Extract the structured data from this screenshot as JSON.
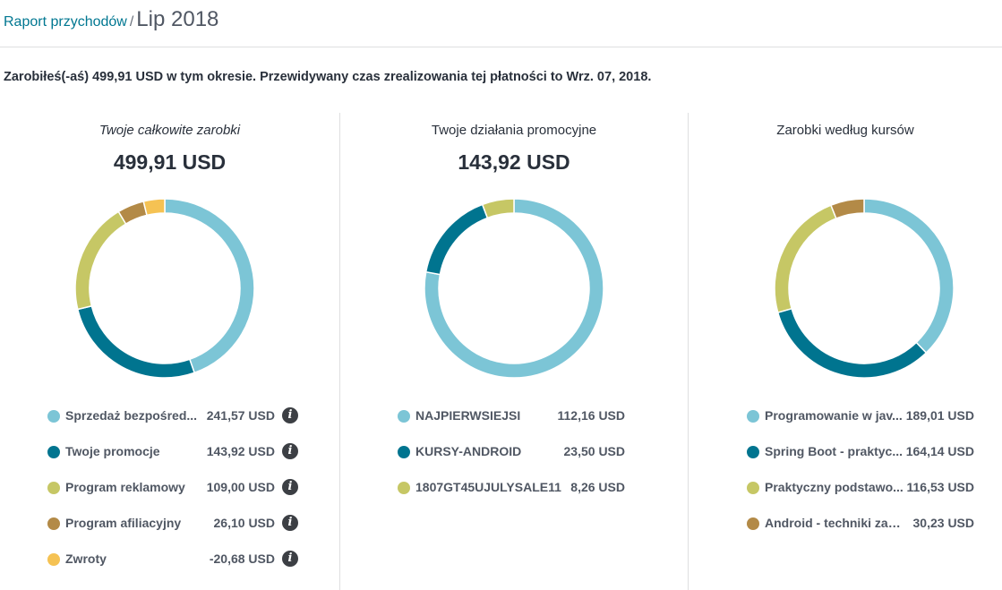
{
  "breadcrumb": {
    "parent": "Raport przychodów",
    "separator": "/",
    "current": "Lip 2018"
  },
  "summary": "Zarobiłeś(-aś) 499,91 USD w tym okresie. Przewidywany czas zrealizowania tej płatności to Wrz. 07, 2018.",
  "colors": {
    "light_blue": "#7cc5d6",
    "teal": "#00748f",
    "olive": "#c6c765",
    "brown": "#b38a47",
    "yellow": "#f5c253"
  },
  "chart_data": [
    {
      "type": "pie",
      "title": "Twoje całkowite zarobki",
      "total": "499,91 USD",
      "series": [
        {
          "name": "Sprzedaż bezpośred...",
          "value": 241.57,
          "display": "241,57 USD",
          "color": "#7cc5d6",
          "arc": 241.57
        },
        {
          "name": "Twoje promocje",
          "value": 143.92,
          "display": "143,92 USD",
          "color": "#00748f",
          "arc": 143.92
        },
        {
          "name": "Program reklamowy",
          "value": 109.0,
          "display": "109,00 USD",
          "color": "#c6c765",
          "arc": 109.0
        },
        {
          "name": "Program afiliacyjny",
          "value": 26.1,
          "display": "26,10 USD",
          "color": "#b38a47",
          "arc": 26.1
        },
        {
          "name": "Zwroty",
          "value": -20.68,
          "display": "-20,68 USD",
          "color": "#f5c253",
          "arc": 20.68
        }
      ]
    },
    {
      "type": "pie",
      "title": "Twoje działania promocyjne",
      "total": "143,92 USD",
      "series": [
        {
          "name": "NAJPIERWSIEJSI",
          "value": 112.16,
          "display": "112,16 USD",
          "color": "#7cc5d6",
          "arc": 112.16
        },
        {
          "name": "KURSY-ANDROID",
          "value": 23.5,
          "display": "23,50 USD",
          "color": "#00748f",
          "arc": 23.5
        },
        {
          "name": "1807GT45UJULYSALE11",
          "value": 8.26,
          "display": "8,26 USD",
          "color": "#c6c765",
          "arc": 8.26
        }
      ]
    },
    {
      "type": "pie",
      "title": "Zarobki według kursów",
      "total": "",
      "series": [
        {
          "name": "Programowanie w jav...",
          "value": 189.01,
          "display": "189,01 USD",
          "color": "#7cc5d6",
          "arc": 189.01
        },
        {
          "name": "Spring Boot - praktyc...",
          "value": 164.14,
          "display": "164,14 USD",
          "color": "#00748f",
          "arc": 164.14
        },
        {
          "name": "Praktyczny podstawo...",
          "value": 116.53,
          "display": "116,53 USD",
          "color": "#c6c765",
          "arc": 116.53
        },
        {
          "name": "Android - techniki zaa...",
          "value": 30.23,
          "display": "30,23 USD",
          "color": "#b38a47",
          "arc": 30.23
        }
      ]
    }
  ],
  "info_icon": "info-circle-icon"
}
